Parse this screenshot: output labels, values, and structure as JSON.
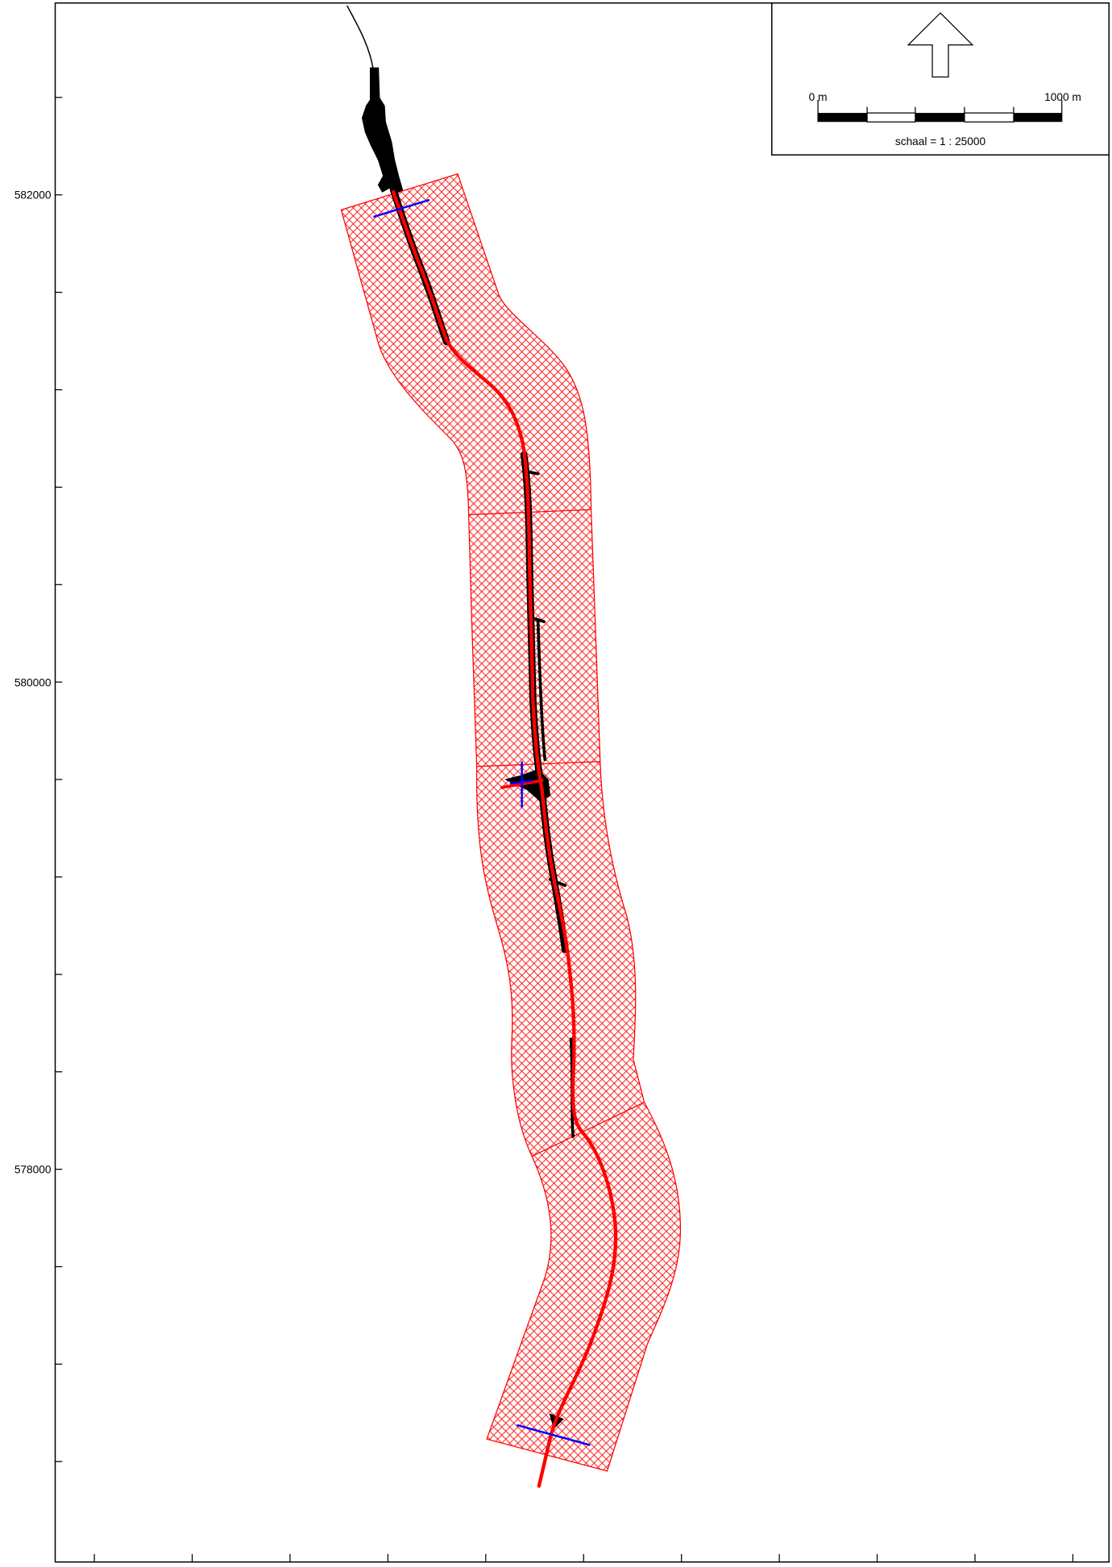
{
  "map": {
    "y_axis_labels": [
      "582000",
      "580000",
      "578000"
    ],
    "scale_bar": {
      "start_label": "0 m",
      "end_label": "1000 m",
      "caption": "schaal = 1 : 25000"
    },
    "north_arrow": {
      "icon": "north-arrow-icon"
    },
    "colors": {
      "zone_hatch": "#ff0000",
      "river_axis": "#ff0000",
      "dredged_area": "#000000",
      "profile_lines": "#0000ff",
      "frame": "#000000"
    }
  }
}
